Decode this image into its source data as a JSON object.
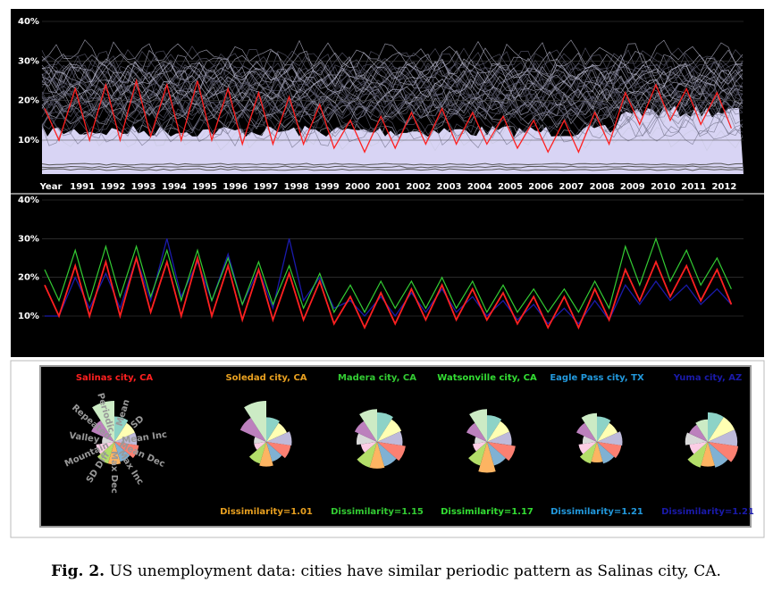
{
  "top_chart": {
    "yticks": [
      "40%",
      "30%",
      "20%",
      "10%"
    ],
    "x_label": "Year",
    "years": [
      "1991",
      "1992",
      "1993",
      "1994",
      "1995",
      "1996",
      "1997",
      "1998",
      "1999",
      "2000",
      "2001",
      "2002",
      "2003",
      "2004",
      "2005",
      "2006",
      "2007",
      "2008",
      "2009",
      "2010",
      "2011",
      "2012"
    ]
  },
  "middle_chart": {
    "yticks": [
      "40%",
      "30%",
      "20%",
      "10%"
    ]
  },
  "series": [
    {
      "name": "Salinas city, CA",
      "color": "#ff2020",
      "values": [
        18,
        10,
        23,
        10,
        24,
        10,
        25,
        11,
        24,
        10,
        25,
        10,
        23,
        9,
        22,
        9,
        21,
        9,
        19,
        8,
        15,
        7,
        16,
        8,
        17,
        9,
        18,
        9,
        17,
        9,
        16,
        8,
        15,
        7,
        15,
        7,
        17,
        9,
        22,
        14,
        24,
        15,
        23,
        14,
        22,
        13
      ]
    },
    {
      "name": "Madera city, CA",
      "color": "#33cc33",
      "values": [
        22,
        14,
        27,
        14,
        28,
        15,
        28,
        15,
        27,
        14,
        27,
        14,
        25,
        13,
        24,
        13,
        23,
        12,
        21,
        11,
        18,
        11,
        19,
        12,
        19,
        12,
        20,
        12,
        19,
        11,
        18,
        11,
        17,
        11,
        17,
        11,
        19,
        12,
        28,
        18,
        30,
        19,
        27,
        18,
        25,
        17
      ]
    },
    {
      "name": "Yuma city, AZ",
      "color": "#1a1aaa",
      "values": [
        10,
        10,
        20,
        12,
        21,
        12,
        25,
        14,
        30,
        15,
        24,
        14,
        26,
        13,
        22,
        12,
        30,
        14,
        20,
        12,
        14,
        10,
        15,
        10,
        16,
        11,
        17,
        11,
        15,
        10,
        14,
        9,
        13,
        8,
        12,
        8,
        14,
        9,
        18,
        13,
        19,
        14,
        18,
        13,
        17,
        13
      ]
    }
  ],
  "glyphs": {
    "sectors": [
      "Mean",
      "SD",
      "Mean Inc",
      "Mean Dec",
      "Max Inc",
      "Max Dec",
      "SD Diff",
      "Mountain",
      "Valley",
      "Repeated",
      "Periodic"
    ],
    "colors": [
      "#8dd3c7",
      "#ffffb3",
      "#bebada",
      "#fb8072",
      "#80b1d3",
      "#fdb462",
      "#b3de69",
      "#fccde5",
      "#d9d9d9",
      "#bc80bd",
      "#ccebc5"
    ],
    "items": [
      {
        "city": "Salinas city, CA",
        "color": "#ff2020",
        "values": [
          0.62,
          0.55,
          0.55,
          0.6,
          0.5,
          0.55,
          0.55,
          0.45,
          0.3,
          0.62,
          1.0
        ]
      },
      {
        "city": "Soledad city, CA",
        "color": "#e8a020",
        "dissimilarity": "Dissimilarity=1.01",
        "values": [
          0.6,
          0.55,
          0.62,
          0.6,
          0.5,
          0.6,
          0.55,
          0.3,
          0.3,
          0.7,
          1.0
        ]
      },
      {
        "city": "Madera city, CA",
        "color": "#33cc33",
        "dissimilarity": "Dissimilarity=1.15",
        "values": [
          0.72,
          0.65,
          0.62,
          0.7,
          0.62,
          0.65,
          0.65,
          0.4,
          0.5,
          0.6,
          0.8
        ]
      },
      {
        "city": "Watsonville city, CA",
        "color": "#33dd33",
        "dissimilarity": "Dissimilarity=1.17",
        "values": [
          0.65,
          0.6,
          0.6,
          0.7,
          0.6,
          0.75,
          0.6,
          0.35,
          0.3,
          0.55,
          0.8
        ]
      },
      {
        "city": "Eagle Pass city, TX",
        "color": "#2299dd",
        "dissimilarity": "Dissimilarity=1.21",
        "values": [
          0.62,
          0.55,
          0.62,
          0.6,
          0.55,
          0.5,
          0.55,
          0.45,
          0.35,
          0.55,
          0.7
        ]
      },
      {
        "city": "Yuma city, AZ",
        "color": "#1a1aaa",
        "dissimilarity": "Dissimilarity=1.21",
        "values": [
          0.72,
          0.72,
          0.72,
          0.75,
          0.65,
          0.6,
          0.65,
          0.45,
          0.55,
          0.5,
          0.55
        ]
      }
    ]
  },
  "caption": {
    "label": "Fig. 2.",
    "text": " US unemployment data: cities have similar periodic pattern as Salinas city, CA."
  }
}
